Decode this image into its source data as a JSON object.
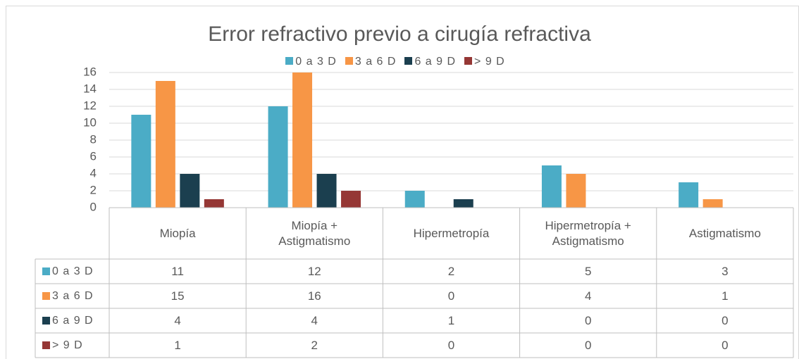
{
  "chart_data": {
    "type": "bar",
    "title": "Error refractivo previo a cirugía refractiva",
    "categories": [
      "Miopía",
      "Miopía + Astigmatismo",
      "Hipermetropía",
      "Hipermetropía + Astigmatismo",
      "Astigmatismo"
    ],
    "series": [
      {
        "name": "0 a 3 D",
        "color": "#4bacc6",
        "values": [
          11,
          12,
          2,
          5,
          3
        ]
      },
      {
        "name": "3 a 6 D",
        "color": "#f79646",
        "values": [
          15,
          16,
          0,
          4,
          1
        ]
      },
      {
        "name": "6 a 9 D",
        "color": "#1b3f4f",
        "values": [
          4,
          4,
          1,
          0,
          0
        ]
      },
      {
        "name": "> 9 D",
        "color": "#953735",
        "values": [
          1,
          2,
          0,
          0,
          0
        ]
      }
    ],
    "ylim": [
      0,
      16
    ],
    "yticks": [
      0,
      2,
      4,
      6,
      8,
      10,
      12,
      14,
      16
    ],
    "grid": true,
    "legend": "top"
  }
}
